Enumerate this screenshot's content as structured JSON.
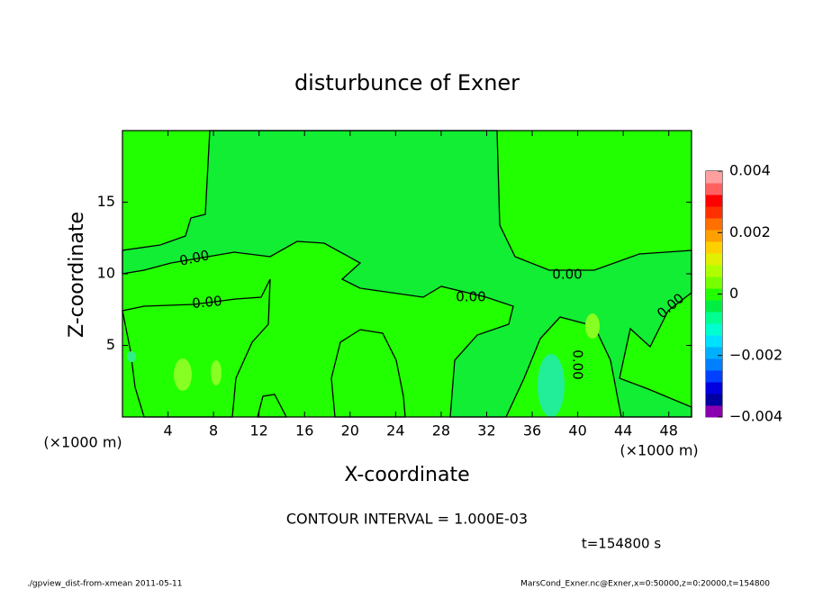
{
  "chart_data": {
    "type": "contour",
    "title": "disturbunce of Exner",
    "x_label": "X-coordinate",
    "y_label": "Z-coordinate",
    "x_unit": "(×1000 m)",
    "y_unit": "(×1000 m)",
    "xlim": [
      0,
      50
    ],
    "xticks": [
      4,
      8,
      12,
      16,
      20,
      24,
      28,
      32,
      36,
      40,
      44,
      48
    ],
    "ylim": [
      0,
      20
    ],
    "yticks": [
      5,
      10,
      15
    ],
    "contour_labels": [
      "0.00",
      "0.00",
      "0.00",
      "0.00",
      "0.00",
      "0.00"
    ],
    "colorbar": {
      "clim": [
        -0.004,
        0.004
      ],
      "ticks": [
        {
          "value": 0.004,
          "label": "0.004"
        },
        {
          "value": 0.002,
          "label": "0.002"
        },
        {
          "value": 0,
          "label": "0"
        },
        {
          "value": -0.002,
          "label": "−0.002"
        },
        {
          "value": -0.004,
          "label": "−0.004"
        }
      ],
      "colors": [
        "#8a00b0",
        "#0000a0",
        "#0000e0",
        "#0040ff",
        "#0080ff",
        "#00b0ff",
        "#00e0ff",
        "#00ffd0",
        "#00ff90",
        "#00ee44",
        "#22ff00",
        "#77ff00",
        "#b0ff00",
        "#e0f000",
        "#ffd000",
        "#ffa000",
        "#ff7000",
        "#ff3000",
        "#ff0000",
        "#ff6060",
        "#ffa0a0"
      ]
    },
    "annotations": [
      "CONTOUR INTERVAL = 1.000E-03",
      "t=154800 s",
      "./gpview_dist-from-xmean  2011-05-11",
      "MarsCond_Exner.nc@Exner,x=0:50000,z=0:20000,t=154800"
    ]
  }
}
